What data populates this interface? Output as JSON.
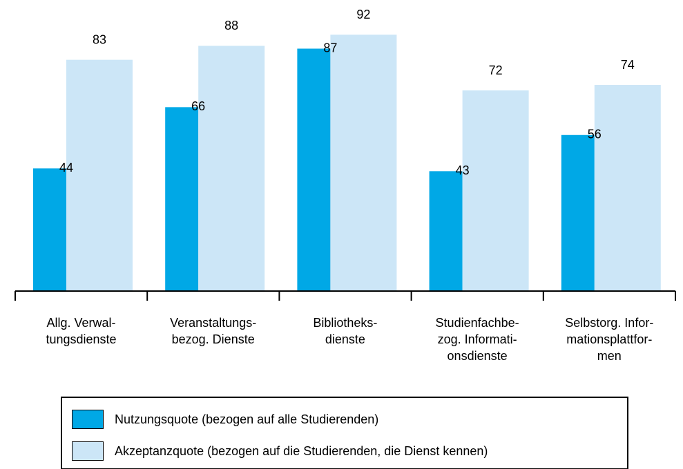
{
  "chart_data": {
    "type": "bar",
    "categories": [
      "Allg. Verwal-\ntungsdienste",
      "Veranstaltungs-\nbezog. Dienste",
      "Bibliotheks-\ndienste",
      "Studienfachbe-\nzog. Informati-\nonsdienste",
      "Selbstorg. Infor-\nmationsplattfor-\nmen"
    ],
    "series": [
      {
        "name": "Nutzungsquote (bezogen auf alle Studierenden)",
        "color": "#00a8e6",
        "values": [
          44,
          66,
          87,
          43,
          56
        ]
      },
      {
        "name": "Akzeptanzquote (bezogen auf die Studierenden, die Dienst kennen)",
        "color": "#cce6f7",
        "values": [
          83,
          88,
          92,
          72,
          74
        ]
      }
    ],
    "ylim": [
      0,
      100
    ]
  }
}
